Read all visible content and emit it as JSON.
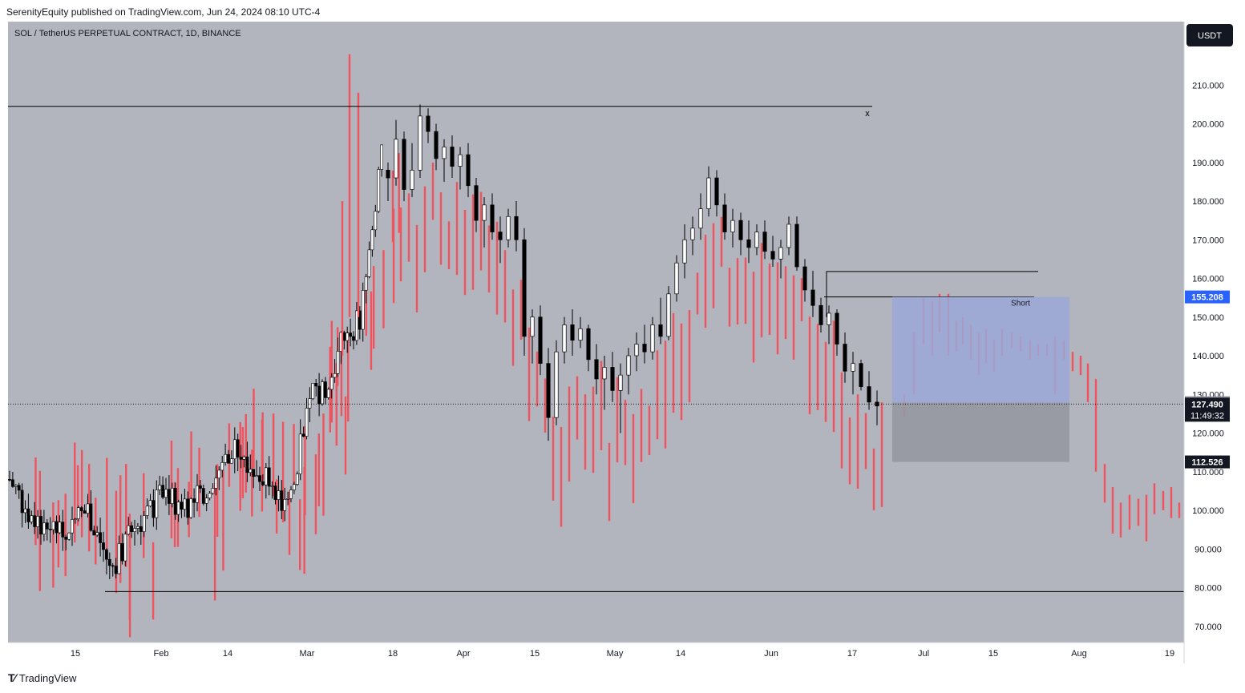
{
  "header": {
    "publisher": "SerenityEquity published on TradingView.com, Jun 24, 2024 08:10 UTC-4"
  },
  "footer": {
    "logo_text": "TradingView"
  },
  "chart_data": {
    "type": "candlestick",
    "title": "SOL / TetherUS PERPETUAL CONTRACT, 1D, BINANCE",
    "currency": "USDT",
    "y_ticks": [
      "70.000",
      "80.000",
      "90.000",
      "100.000",
      "110.000",
      "120.000",
      "130.000",
      "140.000",
      "150.000",
      "160.000",
      "170.000",
      "180.000",
      "190.000",
      "200.000",
      "210.000"
    ],
    "x_ticks": [
      "15",
      "Feb",
      "14",
      "Mar",
      "18",
      "Apr",
      "15",
      "May",
      "14",
      "Jun",
      "17",
      "Jul",
      "15",
      "Aug",
      "19"
    ],
    "ylim": [
      63,
      225
    ],
    "price_labels": {
      "target": "155.208",
      "level": "127.858",
      "last": "127.490",
      "countdown": "11:49:32",
      "stop": "112.526"
    },
    "annotations": {
      "short_label": "Short",
      "x_marker": "x"
    },
    "colors": {
      "background": "#b2b5be",
      "up_body": "#ffffff",
      "down_body": "#000000",
      "projection": "#f0525e",
      "short_zone": "#9aa8d8",
      "loss_zone": "#9598a1",
      "target_badge": "#2962ff"
    },
    "candles": [
      [
        188,
        190,
        180,
        186
      ],
      [
        186,
        201,
        184,
        196
      ],
      [
        196,
        198,
        180,
        183
      ],
      [
        183,
        195,
        181,
        188
      ],
      [
        188,
        205,
        186,
        202
      ],
      [
        202,
        204,
        195,
        198
      ],
      [
        198,
        200,
        188,
        191
      ],
      [
        191,
        196,
        185,
        194
      ],
      [
        194,
        197,
        186,
        189
      ],
      [
        189,
        194,
        183,
        192
      ],
      [
        192,
        195,
        181,
        184
      ],
      [
        184,
        186,
        172,
        175
      ],
      [
        175,
        181,
        168,
        179
      ],
      [
        179,
        182,
        170,
        172
      ],
      [
        172,
        176,
        164,
        170
      ],
      [
        170,
        178,
        168,
        176
      ],
      [
        176,
        180,
        167,
        170
      ],
      [
        170,
        173,
        140,
        145
      ],
      [
        145,
        152,
        138,
        150
      ],
      [
        150,
        153,
        135,
        138
      ],
      [
        138,
        142,
        118,
        124
      ],
      [
        124,
        144,
        122,
        141
      ],
      [
        141,
        150,
        138,
        148
      ],
      [
        148,
        152,
        140,
        144
      ],
      [
        144,
        150,
        142,
        147
      ],
      [
        147,
        148,
        136,
        139
      ],
      [
        139,
        143,
        130,
        134
      ],
      [
        134,
        140,
        126,
        137
      ],
      [
        137,
        141,
        128,
        131
      ],
      [
        131,
        138,
        120,
        135
      ],
      [
        135,
        142,
        130,
        140
      ],
      [
        140,
        146,
        136,
        143
      ],
      [
        143,
        148,
        138,
        141
      ],
      [
        141,
        150,
        139,
        148
      ],
      [
        148,
        155,
        143,
        145
      ],
      [
        145,
        158,
        144,
        156
      ],
      [
        156,
        166,
        154,
        164
      ],
      [
        164,
        174,
        160,
        170
      ],
      [
        170,
        176,
        166,
        173
      ],
      [
        173,
        182,
        170,
        178
      ],
      [
        178,
        189,
        176,
        186
      ],
      [
        186,
        188,
        176,
        179
      ],
      [
        179,
        182,
        170,
        172
      ],
      [
        172,
        178,
        168,
        175
      ],
      [
        175,
        177,
        166,
        170
      ],
      [
        170,
        175,
        164,
        168
      ],
      [
        168,
        174,
        166,
        172
      ],
      [
        172,
        175,
        165,
        167
      ],
      [
        167,
        171,
        163,
        165
      ],
      [
        165,
        170,
        160,
        168
      ],
      [
        168,
        176,
        166,
        174
      ],
      [
        174,
        176,
        162,
        163
      ],
      [
        163,
        165,
        154,
        157
      ],
      [
        157,
        162,
        150,
        153
      ],
      [
        153,
        155,
        146,
        148
      ],
      [
        148,
        153,
        143,
        151
      ],
      [
        151,
        152,
        140,
        143
      ],
      [
        143,
        146,
        133,
        136
      ],
      [
        136,
        141,
        130,
        138
      ],
      [
        138,
        139,
        131,
        132
      ],
      [
        132,
        136,
        126,
        128
      ],
      [
        128,
        131,
        122,
        127
      ]
    ]
  }
}
